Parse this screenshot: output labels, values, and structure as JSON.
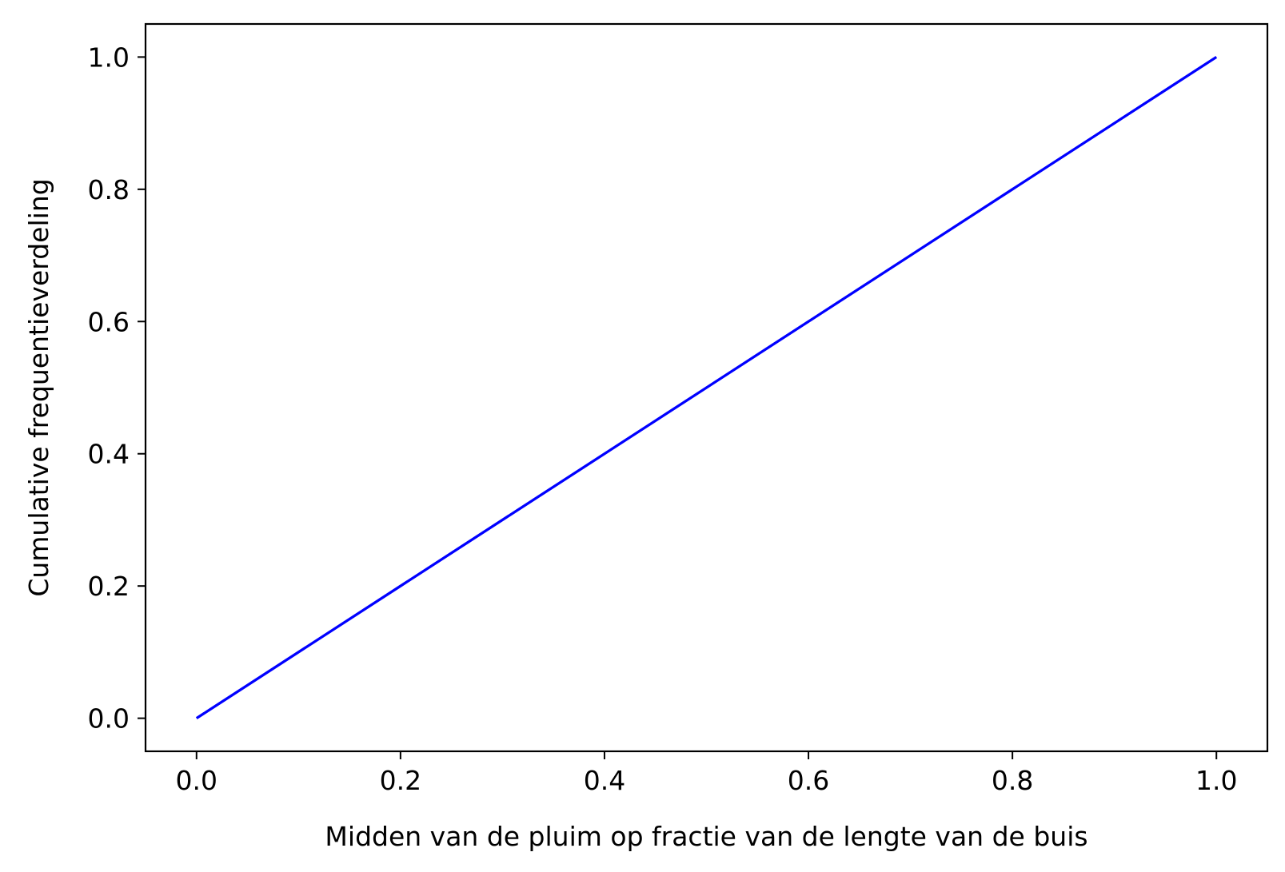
{
  "chart_data": {
    "type": "line",
    "title": "",
    "xlabel": "Midden van de pluim op fractie van de lengte van de buis",
    "ylabel": "Cumulative frequentieverdeling",
    "xlim": [
      -0.05,
      1.05
    ],
    "ylim": [
      -0.05,
      1.05
    ],
    "x_ticks": [
      "0.0",
      "0.2",
      "0.4",
      "0.6",
      "0.8",
      "1.0"
    ],
    "y_ticks": [
      "0.0",
      "0.2",
      "0.4",
      "0.6",
      "0.8",
      "1.0"
    ],
    "grid": false,
    "legend": "none",
    "series": [
      {
        "color": "#0000ff",
        "x": [
          0.0,
          0.2,
          0.4,
          0.6,
          0.8,
          1.0
        ],
        "y": [
          0.0,
          0.2,
          0.4,
          0.6,
          0.8,
          1.0
        ]
      }
    ]
  }
}
